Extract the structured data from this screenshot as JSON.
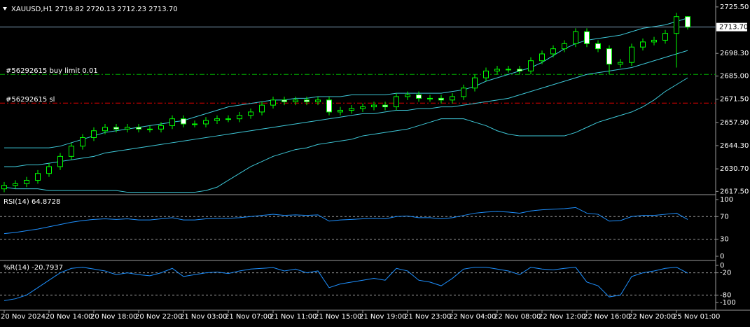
{
  "chart_data": [
    {
      "type": "candlestick",
      "title": "XAUUSD,H1  2719.82 2720.13 2712.23 2713.70",
      "categories": [
        "20 Nov 2024",
        null,
        null,
        null,
        "20 Nov 14:00",
        null,
        null,
        null,
        "20 Nov 18:00",
        null,
        null,
        null,
        "20 Nov 22:00",
        null,
        null,
        null,
        "21 Nov 03:00",
        null,
        null,
        null,
        "21 Nov 07:00",
        null,
        null,
        null,
        "21 Nov 11:00",
        null,
        null,
        null,
        "21 Nov 15:00",
        null,
        null,
        null,
        "21 Nov 19:00",
        null,
        null,
        null,
        "21 Nov 23:00",
        null,
        null,
        null,
        "22 Nov 04:00",
        null,
        null,
        null,
        "22 Nov 08:00",
        null,
        null,
        null,
        "22 Nov 12:00",
        null,
        null,
        null,
        "22 Nov 16:00",
        null,
        null,
        null,
        "22 Nov 20:00",
        null,
        null,
        null,
        "25 Nov 01:00",
        null
      ],
      "open": [
        2619,
        2621,
        2622,
        2624,
        2628,
        2632,
        2638,
        2644,
        2649,
        2653,
        2655,
        2654,
        2655,
        2654,
        2654,
        2656,
        2660,
        2657,
        2657,
        2659,
        2660,
        2660,
        2662,
        2664,
        2668,
        2671,
        2670,
        2671,
        2670,
        2671,
        2664,
        2665,
        2666,
        2667,
        2668,
        2667,
        2673,
        2674,
        2672,
        2672,
        2671,
        2673,
        2678,
        2684,
        2688,
        2689,
        2689,
        2688,
        2694,
        2698,
        2701,
        2704,
        2711,
        2704,
        2701,
        2692,
        2693,
        2702,
        2705,
        2706,
        2710,
        2719.82
      ],
      "high": [
        2623,
        2624,
        2626,
        2630,
        2634,
        2640,
        2646,
        2651,
        2655,
        2657,
        2657,
        2657,
        2657,
        2656,
        2658,
        2662,
        2662,
        2659,
        2661,
        2662,
        2662,
        2664,
        2666,
        2670,
        2673,
        2673,
        2673,
        2673,
        2673,
        2673,
        2667,
        2668,
        2669,
        2670,
        2670,
        2675,
        2676,
        2676,
        2674,
        2674,
        2675,
        2680,
        2686,
        2690,
        2691,
        2691,
        2691,
        2696,
        2700,
        2703,
        2706,
        2713,
        2713,
        2706,
        2703,
        2695,
        2704,
        2707,
        2708,
        2712,
        2722,
        2720.13
      ],
      "low": [
        2617,
        2619,
        2620,
        2622,
        2626,
        2630,
        2636,
        2642,
        2647,
        2651,
        2652,
        2652,
        2652,
        2652,
        2652,
        2654,
        2655,
        2655,
        2655,
        2657,
        2658,
        2658,
        2660,
        2662,
        2666,
        2668,
        2668,
        2668,
        2668,
        2662,
        2662,
        2663,
        2664,
        2665,
        2665,
        2665,
        2671,
        2670,
        2670,
        2669,
        2669,
        2671,
        2676,
        2682,
        2686,
        2687,
        2686,
        2686,
        2692,
        2696,
        2699,
        2702,
        2702,
        2699,
        2686,
        2690,
        2691,
        2700,
        2703,
        2704,
        2690,
        2712.23
      ],
      "close": [
        2621,
        2622,
        2624,
        2628,
        2632,
        2638,
        2644,
        2649,
        2653,
        2655,
        2654,
        2655,
        2654,
        2654,
        2656,
        2660,
        2657,
        2657,
        2659,
        2660,
        2660,
        2662,
        2664,
        2668,
        2671,
        2670,
        2671,
        2670,
        2671,
        2664,
        2665,
        2666,
        2667,
        2668,
        2667,
        2673,
        2674,
        2672,
        2672,
        2671,
        2673,
        2678,
        2684,
        2688,
        2689,
        2689,
        2688,
        2694,
        2698,
        2701,
        2704,
        2711,
        2704,
        2701,
        2692,
        2693,
        2702,
        2705,
        2706,
        2710,
        2719.82,
        2713.7
      ],
      "candle_color": "#00ff00",
      "up_fill": "#000000",
      "down_fill": "#ffffff",
      "overlays": [
        {
          "color": "#3ec8d8",
          "values": [
            2643,
            2643,
            2643,
            2643,
            2643,
            2644,
            2646,
            2648,
            2650,
            2652,
            2653,
            2654,
            2655,
            2656,
            2657,
            2658,
            2659,
            2661,
            2663,
            2665,
            2667,
            2668,
            2669,
            2670,
            2671,
            2671,
            2672,
            2672,
            2673,
            2673,
            2673,
            2674,
            2674,
            2674,
            2674,
            2675,
            2675,
            2675,
            2675,
            2675,
            2676,
            2677,
            2679,
            2682,
            2684,
            2686,
            2688,
            2690,
            2693,
            2697,
            2701,
            2704,
            2706,
            2707,
            2708,
            2709,
            2711,
            2713,
            2714,
            2715,
            2717,
            2719
          ]
        },
        {
          "color": "#3ec8d8",
          "values": [
            2632,
            2632,
            2633,
            2633,
            2634,
            2635,
            2636,
            2637,
            2638,
            2640,
            2641,
            2642,
            2643,
            2644,
            2645,
            2646,
            2647,
            2648,
            2649,
            2650,
            2651,
            2652,
            2653,
            2654,
            2655,
            2656,
            2657,
            2658,
            2659,
            2660,
            2661,
            2662,
            2663,
            2663,
            2664,
            2665,
            2665,
            2666,
            2666,
            2667,
            2667,
            2668,
            2669,
            2670,
            2671,
            2672,
            2674,
            2676,
            2678,
            2680,
            2682,
            2684,
            2686,
            2687,
            2688,
            2689,
            2690,
            2692,
            2694,
            2696,
            2698,
            2700
          ]
        },
        {
          "color": "#3ec8d8",
          "values": [
            2620,
            2619,
            2619,
            2619,
            2618,
            2618,
            2618,
            2618,
            2618,
            2618,
            2618,
            2617,
            2617,
            2617,
            2617,
            2617,
            2617,
            2617,
            2618,
            2620,
            2624,
            2628,
            2632,
            2635,
            2638,
            2640,
            2642,
            2643,
            2645,
            2646,
            2647,
            2648,
            2650,
            2651,
            2652,
            2653,
            2654,
            2656,
            2658,
            2660,
            2660,
            2660,
            2658,
            2656,
            2653,
            2651,
            2650,
            2650,
            2650,
            2650,
            2650,
            2652,
            2655,
            2658,
            2660,
            2662,
            2664,
            2667,
            2671,
            2676,
            2680,
            2684
          ]
        }
      ],
      "levels": [
        {
          "label": "#56292615 buy limit 0.01",
          "value": 2686,
          "color": "#00b000"
        },
        {
          "label": "#56292615 sl",
          "value": 2669.2,
          "color": "#e00000"
        }
      ],
      "last_price": {
        "value": 2713.7,
        "label": "2713.70",
        "color": "#7f9fb8"
      },
      "ylim": [
        2616,
        2727.5
      ],
      "yticks": [
        {
          "value": 2725.5,
          "label": "2725.50"
        },
        {
          "value": 2698.3,
          "label": "2698.30"
        },
        {
          "value": 2685,
          "label": "2685.00"
        },
        {
          "value": 2671.5,
          "label": "2671.50"
        },
        {
          "value": 2657.9,
          "label": "2657.90"
        },
        {
          "value": 2644.3,
          "label": "2644.30"
        },
        {
          "value": 2630.7,
          "label": "2630.70"
        },
        {
          "value": 2617.5,
          "label": "2617.50"
        }
      ]
    },
    {
      "type": "line",
      "title": "RSI(14) 64.8728",
      "color": "#1e90ff",
      "values": [
        40,
        42,
        45,
        48,
        52,
        56,
        60,
        63,
        65,
        66,
        65,
        66,
        64,
        64,
        66,
        68,
        64,
        64,
        66,
        67,
        67,
        68,
        70,
        72,
        74,
        72,
        73,
        72,
        73,
        62,
        64,
        65,
        66,
        67,
        66,
        70,
        71,
        68,
        68,
        66,
        68,
        72,
        76,
        78,
        79,
        78,
        76,
        80,
        82,
        83,
        84,
        86,
        76,
        74,
        62,
        63,
        70,
        72,
        72,
        74,
        76,
        64.8728
      ],
      "ylim": [
        0,
        100
      ],
      "yticks": [
        100,
        70,
        30,
        0
      ],
      "levels": [
        70,
        30
      ]
    },
    {
      "type": "line",
      "title": "%R(14) -20.7937",
      "color": "#1e90ff",
      "values": [
        -95,
        -90,
        -80,
        -60,
        -40,
        -20,
        -8,
        -5,
        -10,
        -15,
        -25,
        -20,
        -25,
        -28,
        -20,
        -8,
        -30,
        -25,
        -20,
        -18,
        -22,
        -15,
        -10,
        -8,
        -6,
        -15,
        -10,
        -20,
        -15,
        -60,
        -50,
        -45,
        -40,
        -35,
        -40,
        -8,
        -15,
        -40,
        -45,
        -55,
        -35,
        -10,
        -5,
        -5,
        -10,
        -15,
        -25,
        -5,
        -10,
        -12,
        -8,
        -5,
        -45,
        -55,
        -85,
        -80,
        -30,
        -20,
        -15,
        -8,
        -5,
        -20.7937
      ],
      "ylim": [
        -100,
        0
      ],
      "yticks": [
        0,
        -20,
        -80,
        -100
      ],
      "levels": [
        -20,
        -80
      ]
    }
  ]
}
